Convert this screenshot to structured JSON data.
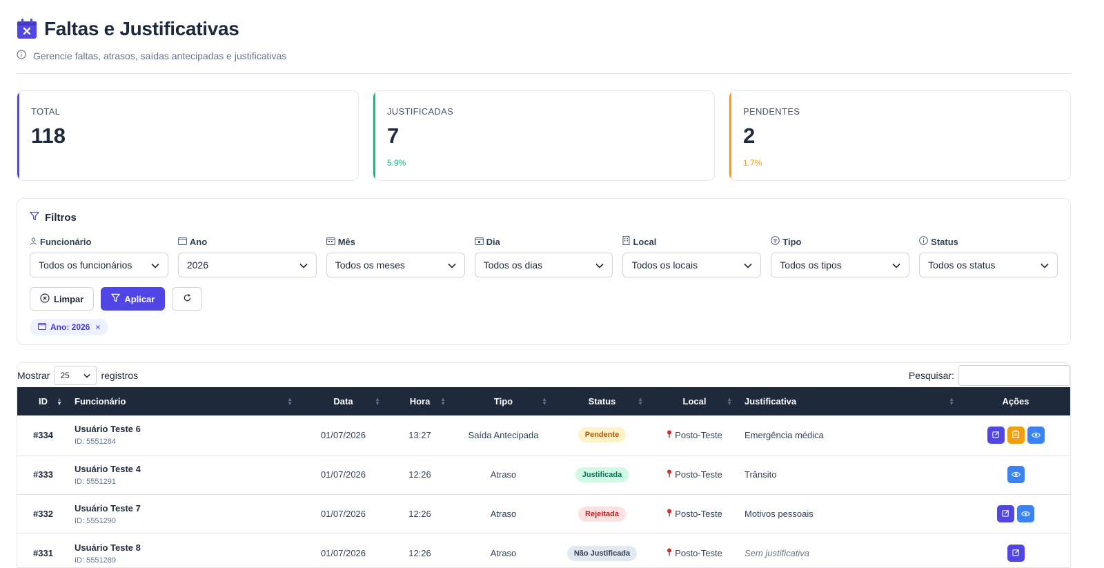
{
  "header": {
    "title": "Faltas e Justificativas",
    "subtitle": "Gerencie faltas, atrasos, saídas antecipadas e justificativas"
  },
  "stats": [
    {
      "label": "TOTAL",
      "value": "118",
      "pct": ""
    },
    {
      "label": "JUSTIFICADAS",
      "value": "7",
      "pct": "5.9%"
    },
    {
      "label": "PENDENTES",
      "value": "2",
      "pct": "1.7%"
    }
  ],
  "filters": {
    "title": "Filtros",
    "fields": [
      {
        "label": "Funcionário",
        "icon": "user-icon",
        "value": "Todos os funcionários"
      },
      {
        "label": "Ano",
        "icon": "calendar-icon",
        "value": "2026"
      },
      {
        "label": "Mês",
        "icon": "calendar-month-icon",
        "value": "Todos os meses"
      },
      {
        "label": "Dia",
        "icon": "calendar-day-icon",
        "value": "Todos os dias"
      },
      {
        "label": "Local",
        "icon": "building-icon",
        "value": "Todos os locais"
      },
      {
        "label": "Tipo",
        "icon": "tag-icon",
        "value": "Todos os tipos"
      },
      {
        "label": "Status",
        "icon": "info-icon",
        "value": "Todos os status"
      }
    ],
    "clear_label": "Limpar",
    "apply_label": "Aplicar",
    "active_chip": "Ano: 2026",
    "chip_close": "×"
  },
  "table": {
    "show_label": "Mostrar",
    "page_size": "25",
    "records_label": "registros",
    "search_label": "Pesquisar:",
    "columns": [
      "ID",
      "Funcionário",
      "Data",
      "Hora",
      "Tipo",
      "Status",
      "Local",
      "Justificativa",
      "Ações"
    ],
    "rows": [
      {
        "id": "#334",
        "name": "Usuário Teste 6",
        "emp_id": "ID: 5551284",
        "date": "01/07/2026",
        "time": "13:27",
        "type": "Saída Antecipada",
        "status": "Pendente",
        "local": "Posto-Teste",
        "justification": "Emergência médica"
      },
      {
        "id": "#333",
        "name": "Usuário Teste 4",
        "emp_id": "ID: 5551291",
        "date": "01/07/2026",
        "time": "12:26",
        "type": "Atraso",
        "status": "Justificada",
        "local": "Posto-Teste",
        "justification": "Trânsito"
      },
      {
        "id": "#332",
        "name": "Usuário Teste 7",
        "emp_id": "ID: 5551290",
        "date": "01/07/2026",
        "time": "12:26",
        "type": "Atraso",
        "status": "Rejeitada",
        "local": "Posto-Teste",
        "justification": "Motivos pessoais"
      },
      {
        "id": "#331",
        "name": "Usuário Teste 8",
        "emp_id": "ID: 5551289",
        "date": "01/07/2026",
        "time": "12:26",
        "type": "Atraso",
        "status": "Não Justificada",
        "local": "Posto-Teste",
        "justification": "Sem justificativa"
      }
    ]
  },
  "colors": {
    "primary": "#4f46e5",
    "success": "#10b981",
    "warning": "#f59e0b",
    "info": "#3b82f6",
    "table_header": "#1e293b",
    "status_pendente_bg": "#fef3c7",
    "status_pendente_fg": "#b45309",
    "status_justificada_bg": "#d1fae5",
    "status_justificada_fg": "#047857",
    "status_rejeitada_bg": "#fee2e2",
    "status_rejeitada_fg": "#b91c1c",
    "status_nao_bg": "#e2e8f0",
    "status_nao_fg": "#334155"
  }
}
